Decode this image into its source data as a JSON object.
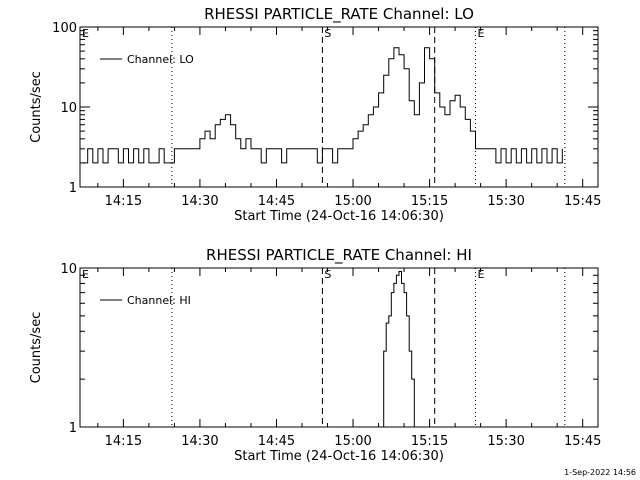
{
  "footer_timestamp": "1-Sep-2022 14:56",
  "chart_data": [
    {
      "type": "line",
      "title": "RHESSI PARTICLE_RATE Channel: LO",
      "xlabel": "Start Time (24-Oct-16 14:06:30)",
      "ylabel": "Counts/sec",
      "yscale": "log",
      "ylim": [
        1,
        100
      ],
      "yticks": [
        "1",
        "10",
        "100"
      ],
      "xlim": [
        "14:06:30",
        "15:48:00"
      ],
      "xticks": [
        "14:15",
        "14:30",
        "14:45",
        "15:00",
        "15:15",
        "15:30",
        "15:45"
      ],
      "legend": {
        "placement": "top-left",
        "entry": "Channel: LO"
      },
      "markers": [
        {
          "label": "E",
          "time": "14:06:30",
          "style": "dotted"
        },
        {
          "label": "",
          "time": "14:24:30",
          "style": "dotted"
        },
        {
          "label": "S",
          "time": "14:54:00",
          "style": "dashed"
        },
        {
          "label": "",
          "time": "15:16:00",
          "style": "dashed"
        },
        {
          "label": "E",
          "time": "15:24:00",
          "style": "dotted"
        },
        {
          "label": "",
          "time": "15:41:30",
          "style": "dotted"
        }
      ],
      "series": [
        {
          "name": "Channel: LO",
          "x": [
            "14:07:00",
            "14:08:00",
            "14:09:00",
            "14:10:00",
            "14:11:00",
            "14:12:00",
            "14:13:00",
            "14:14:00",
            "14:15:00",
            "14:16:00",
            "14:17:00",
            "14:18:00",
            "14:19:00",
            "14:20:00",
            "14:21:00",
            "14:22:00",
            "14:23:00",
            "14:24:00",
            "14:25:00",
            "14:27:00",
            "14:29:00",
            "14:30:00",
            "14:31:00",
            "14:32:00",
            "14:33:00",
            "14:34:00",
            "14:35:00",
            "14:36:00",
            "14:37:00",
            "14:38:00",
            "14:39:00",
            "14:40:00",
            "14:41:00",
            "14:42:00",
            "14:43:00",
            "14:44:00",
            "14:45:00",
            "14:46:00",
            "14:47:00",
            "14:48:00",
            "14:50:00",
            "14:52:00",
            "14:53:00",
            "14:54:00",
            "14:55:00",
            "14:56:00",
            "14:57:00",
            "14:58:00",
            "15:00:00",
            "15:01:00",
            "15:02:00",
            "15:03:00",
            "15:04:00",
            "15:05:00",
            "15:06:00",
            "15:07:00",
            "15:08:00",
            "15:09:00",
            "15:10:00",
            "15:11:00",
            "15:12:00",
            "15:13:00",
            "15:14:00",
            "15:15:00",
            "15:16:00",
            "15:17:00",
            "15:18:00",
            "15:19:00",
            "15:20:00",
            "15:21:00",
            "15:22:00",
            "15:23:00",
            "15:24:00",
            "15:25:00",
            "15:26:00",
            "15:27:00",
            "15:28:00",
            "15:29:00",
            "15:30:00",
            "15:31:00",
            "15:32:00",
            "15:33:00",
            "15:34:00",
            "15:35:00",
            "15:36:00",
            "15:37:00",
            "15:38:00",
            "15:39:00",
            "15:40:00",
            "15:41:00"
          ],
          "values": [
            2,
            3,
            2,
            3,
            2,
            3,
            3,
            2,
            3,
            2,
            3,
            2,
            3,
            2,
            2,
            3,
            2,
            2,
            3,
            3,
            3,
            4,
            5,
            4,
            6,
            7,
            8,
            6,
            4,
            3,
            4,
            3,
            3,
            2,
            3,
            3,
            3,
            2,
            3,
            3,
            3,
            3,
            2,
            3,
            3,
            2,
            3,
            3,
            4,
            5,
            6,
            8,
            10,
            15,
            25,
            40,
            55,
            45,
            30,
            12,
            8,
            20,
            55,
            40,
            15,
            10,
            8,
            12,
            14,
            10,
            7,
            5,
            3,
            3,
            3,
            3,
            2,
            3,
            2,
            3,
            2,
            3,
            2,
            3,
            2,
            3,
            2,
            3,
            2,
            3
          ]
        }
      ]
    },
    {
      "type": "line",
      "title": "RHESSI PARTICLE_RATE Channel: HI",
      "xlabel": "Start Time (24-Oct-16 14:06:30)",
      "ylabel": "Counts/sec",
      "yscale": "log",
      "ylim": [
        1,
        10
      ],
      "yticks": [
        "1",
        "10"
      ],
      "xlim": [
        "14:06:30",
        "15:48:00"
      ],
      "xticks": [
        "14:15",
        "14:30",
        "14:45",
        "15:00",
        "15:15",
        "15:30",
        "15:45"
      ],
      "legend": {
        "placement": "top-left",
        "entry": "Channel: HI"
      },
      "markers": [
        {
          "label": "E",
          "time": "14:06:30",
          "style": "dotted"
        },
        {
          "label": "",
          "time": "14:24:30",
          "style": "dotted"
        },
        {
          "label": "S",
          "time": "14:54:00",
          "style": "dashed"
        },
        {
          "label": "",
          "time": "15:16:00",
          "style": "dashed"
        },
        {
          "label": "E",
          "time": "15:24:00",
          "style": "dotted"
        },
        {
          "label": "",
          "time": "15:41:30",
          "style": "dotted"
        }
      ],
      "series": [
        {
          "name": "Channel: HI",
          "x": [
            "15:05:00",
            "15:06:00",
            "15:06:30",
            "15:07:00",
            "15:07:30",
            "15:08:00",
            "15:08:30",
            "15:09:00",
            "15:09:30",
            "15:10:00",
            "15:10:30",
            "15:11:00",
            "15:11:30",
            "15:12:00"
          ],
          "values": [
            1,
            3,
            4.5,
            5,
            7,
            8,
            9,
            9.5,
            8,
            7,
            5,
            3,
            2,
            1
          ]
        }
      ]
    }
  ]
}
